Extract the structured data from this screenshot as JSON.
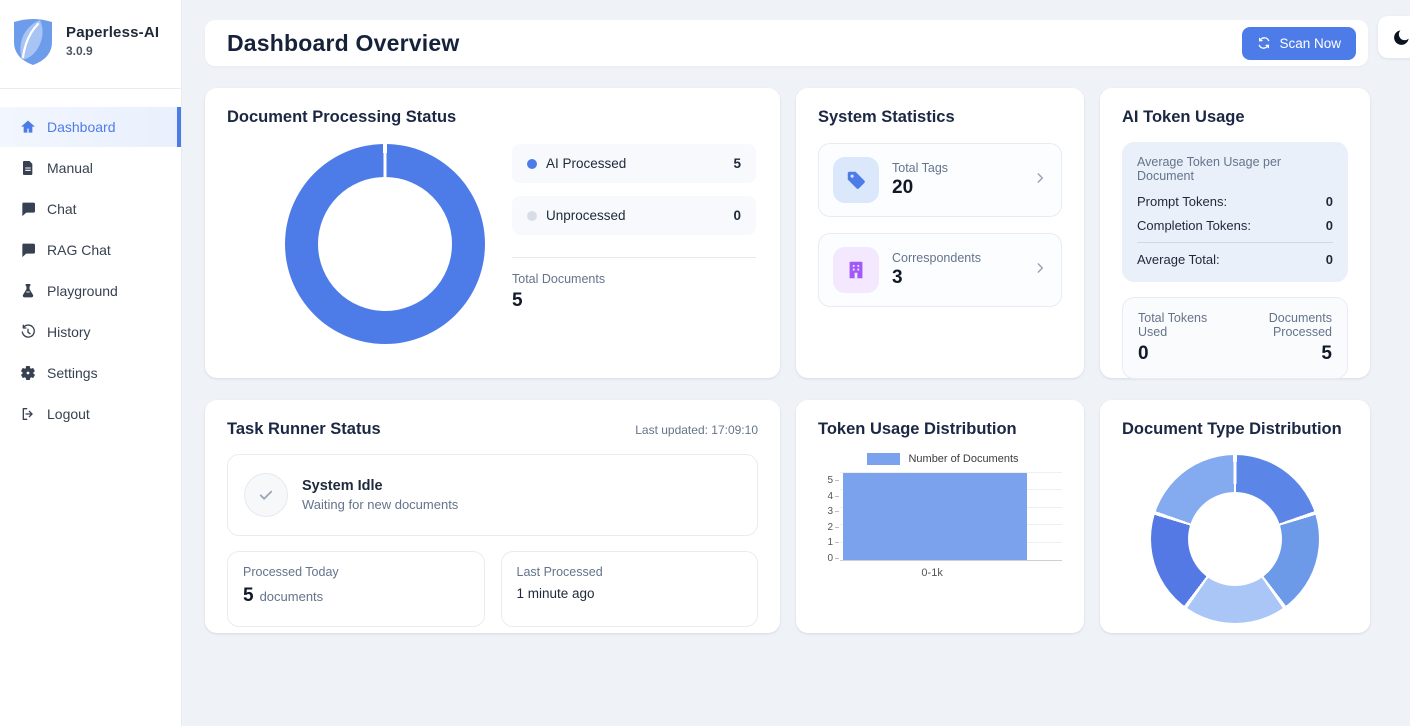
{
  "app": {
    "name": "Paperless-AI",
    "version": "3.0.9"
  },
  "colors": {
    "accent": "#4d7ce9",
    "page_background": "#eff3f8",
    "ai_processed": "#4d7ce9",
    "unprocessed": "#d8dde5",
    "bar_blue": "#7ba3ed",
    "tag_icon_blue": "#4d7ce9",
    "tag_icon_bg": "#dbe7fb",
    "correspondent_icon_purple": "#a259f7",
    "correspondent_icon_bg": "#f3e8fd"
  },
  "sidebar": {
    "items": [
      {
        "label": "Dashboard",
        "icon": "home-icon",
        "active": true
      },
      {
        "label": "Manual",
        "icon": "document-icon",
        "active": false
      },
      {
        "label": "Chat",
        "icon": "chat-icon",
        "active": false
      },
      {
        "label": "RAG Chat",
        "icon": "chat-icon",
        "active": false
      },
      {
        "label": "Playground",
        "icon": "flask-icon",
        "active": false
      },
      {
        "label": "History",
        "icon": "history-icon",
        "active": false
      },
      {
        "label": "Settings",
        "icon": "gear-icon",
        "active": false
      },
      {
        "label": "Logout",
        "icon": "logout-icon",
        "active": false
      }
    ]
  },
  "header": {
    "title": "Dashboard Overview",
    "scan_button_label": "Scan Now"
  },
  "cards": {
    "doc_processing": {
      "title": "Document Processing Status",
      "legend": [
        {
          "label": "AI Processed",
          "value": 5,
          "color": "#4d7ce9"
        },
        {
          "label": "Unprocessed",
          "value": 0,
          "color": "#d8dde5"
        }
      ],
      "total_label": "Total Documents",
      "total_value": 5
    },
    "system_stats": {
      "title": "System Statistics",
      "items": [
        {
          "label": "Total Tags",
          "value": 20,
          "icon": "tag-icon"
        },
        {
          "label": "Correspondents",
          "value": 3,
          "icon": "building-icon"
        }
      ]
    },
    "token_usage": {
      "title": "AI Token Usage",
      "avg_heading": "Average Token Usage per Document",
      "rows": [
        {
          "label": "Prompt Tokens:",
          "value": 0
        },
        {
          "label": "Completion Tokens:",
          "value": 0
        }
      ],
      "total_row": {
        "label": "Average Total:",
        "value": 0
      },
      "totals_panel": {
        "left_label": "Total Tokens Used",
        "left_value": 0,
        "right_label": "Documents Processed",
        "right_value": 5
      }
    },
    "task_runner": {
      "title": "Task Runner Status",
      "last_updated": "Last updated: 17:09:10",
      "status_title": "System Idle",
      "status_subtitle": "Waiting for new documents",
      "processed_today_label": "Processed Today",
      "processed_today_value": 5,
      "processed_today_unit": "documents",
      "last_processed_label": "Last Processed",
      "last_processed_value": "1 minute ago"
    },
    "token_distribution": {
      "title": "Token Usage Distribution"
    },
    "doc_type_distribution": {
      "title": "Document Type Distribution"
    }
  },
  "chart_data": [
    {
      "id": "doc-processing-donut",
      "type": "pie",
      "subtype": "donut",
      "title": "Document Processing Status",
      "labels": [
        "AI Processed",
        "Unprocessed"
      ],
      "values": [
        5,
        0
      ],
      "colors": [
        "#4d7ce9",
        "#d8dde5"
      ],
      "total": 5,
      "legend_position": "right"
    },
    {
      "id": "token-usage-bar",
      "type": "bar",
      "title": "Token Usage Distribution",
      "series_label": "Number of Documents",
      "categories": [
        "0-1k"
      ],
      "values": [
        5
      ],
      "color": "#7ba3ed",
      "ylim": [
        0,
        5
      ],
      "yticks": [
        0,
        1,
        2,
        3,
        4,
        5
      ],
      "legend_position": "top",
      "grid": true
    },
    {
      "id": "doc-type-donut",
      "type": "pie",
      "subtype": "donut",
      "title": "Document Type Distribution",
      "note": "five equal segments, no labels displayed in UI",
      "values": [
        1,
        1,
        1,
        1,
        1
      ],
      "colors": [
        "#5b86e8",
        "#6c99e8",
        "#a9c6f6",
        "#5478e4",
        "#84abf0"
      ],
      "legend_position": "none"
    }
  ]
}
